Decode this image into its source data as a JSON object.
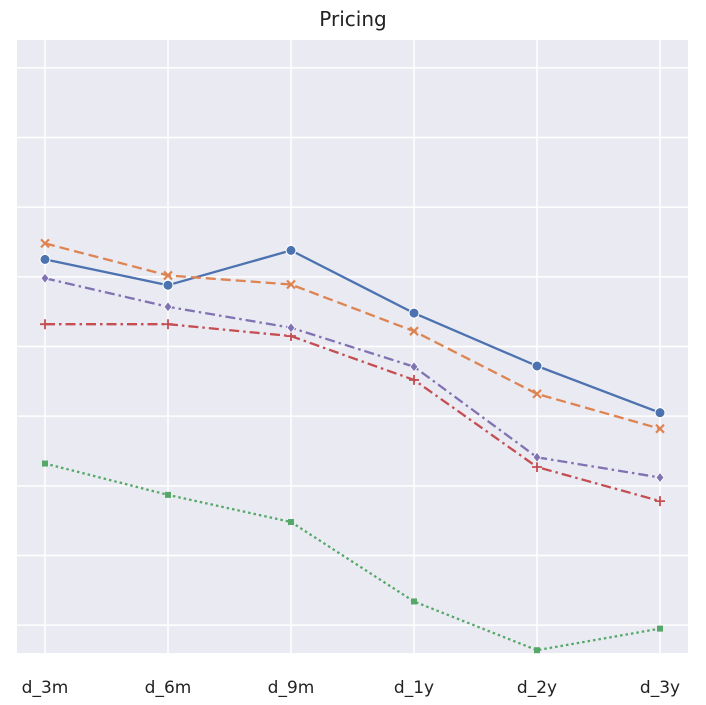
{
  "chart_data": {
    "type": "line",
    "title": "Pricing",
    "xlabel": "",
    "ylabel": "",
    "categories": [
      "d_3m",
      "d_6m",
      "d_9m",
      "d_1y",
      "d_2y",
      "d_3y"
    ],
    "ylim": [
      0,
      8.8
    ],
    "yticks": [
      0.4,
      1.4,
      2.4,
      3.4,
      4.4,
      5.4,
      6.4,
      7.4,
      8.4
    ],
    "ytick_labels_visible": false,
    "grid": true,
    "legend": "none",
    "series": [
      {
        "values": [
          5.65,
          5.28,
          5.78,
          4.88,
          4.12,
          3.45
        ],
        "color": "#4c72b0",
        "dash": "solid",
        "marker": "circle"
      },
      {
        "values": [
          5.88,
          5.42,
          5.29,
          4.62,
          3.72,
          3.22
        ],
        "color": "#dd8452",
        "dash": "dashed",
        "marker": "x"
      },
      {
        "values": [
          2.72,
          2.27,
          1.88,
          0.74,
          0.04,
          0.35
        ],
        "color": "#55a868",
        "dash": "dotted",
        "marker": "square"
      },
      {
        "values": [
          4.72,
          4.72,
          4.55,
          3.92,
          2.67,
          2.18
        ],
        "color": "#c44e52",
        "dash": "dashdot",
        "marker": "plus"
      },
      {
        "values": [
          5.38,
          4.97,
          4.67,
          4.11,
          2.81,
          2.52
        ],
        "color": "#8172b3",
        "dash": "dashdot",
        "marker": "diamond"
      }
    ]
  }
}
